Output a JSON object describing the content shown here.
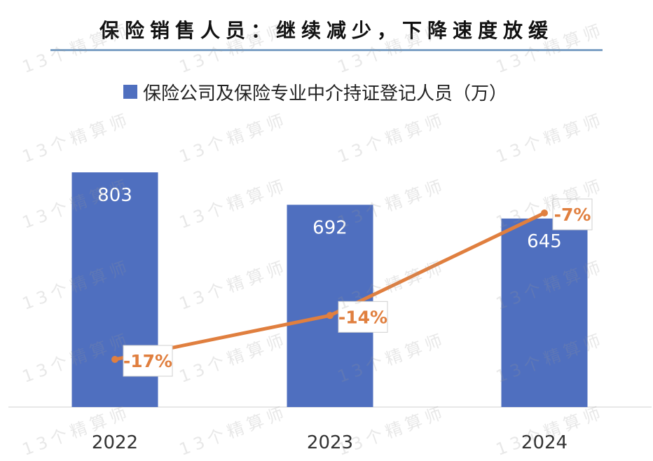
{
  "title": "保险销售人员：继续减少，下降速度放缓",
  "watermark": "13个精算师",
  "colors": {
    "bar": "#4f6fbf",
    "line": "#e07f3f",
    "title_rule": "#7ea2c6"
  },
  "chart_data": {
    "type": "bar",
    "categories": [
      "2022",
      "2023",
      "2024"
    ],
    "series": [
      {
        "name": "保险公司及保险专业中介持证登记人员（万）",
        "type": "bar",
        "values": [
          803,
          692,
          645
        ],
        "labels": [
          "803",
          "692",
          "645"
        ]
      },
      {
        "type": "line",
        "values": [
          -17,
          -14,
          -7
        ],
        "labels": [
          "-17%",
          "-14%",
          "-7%"
        ]
      }
    ],
    "legend": "top-left"
  }
}
